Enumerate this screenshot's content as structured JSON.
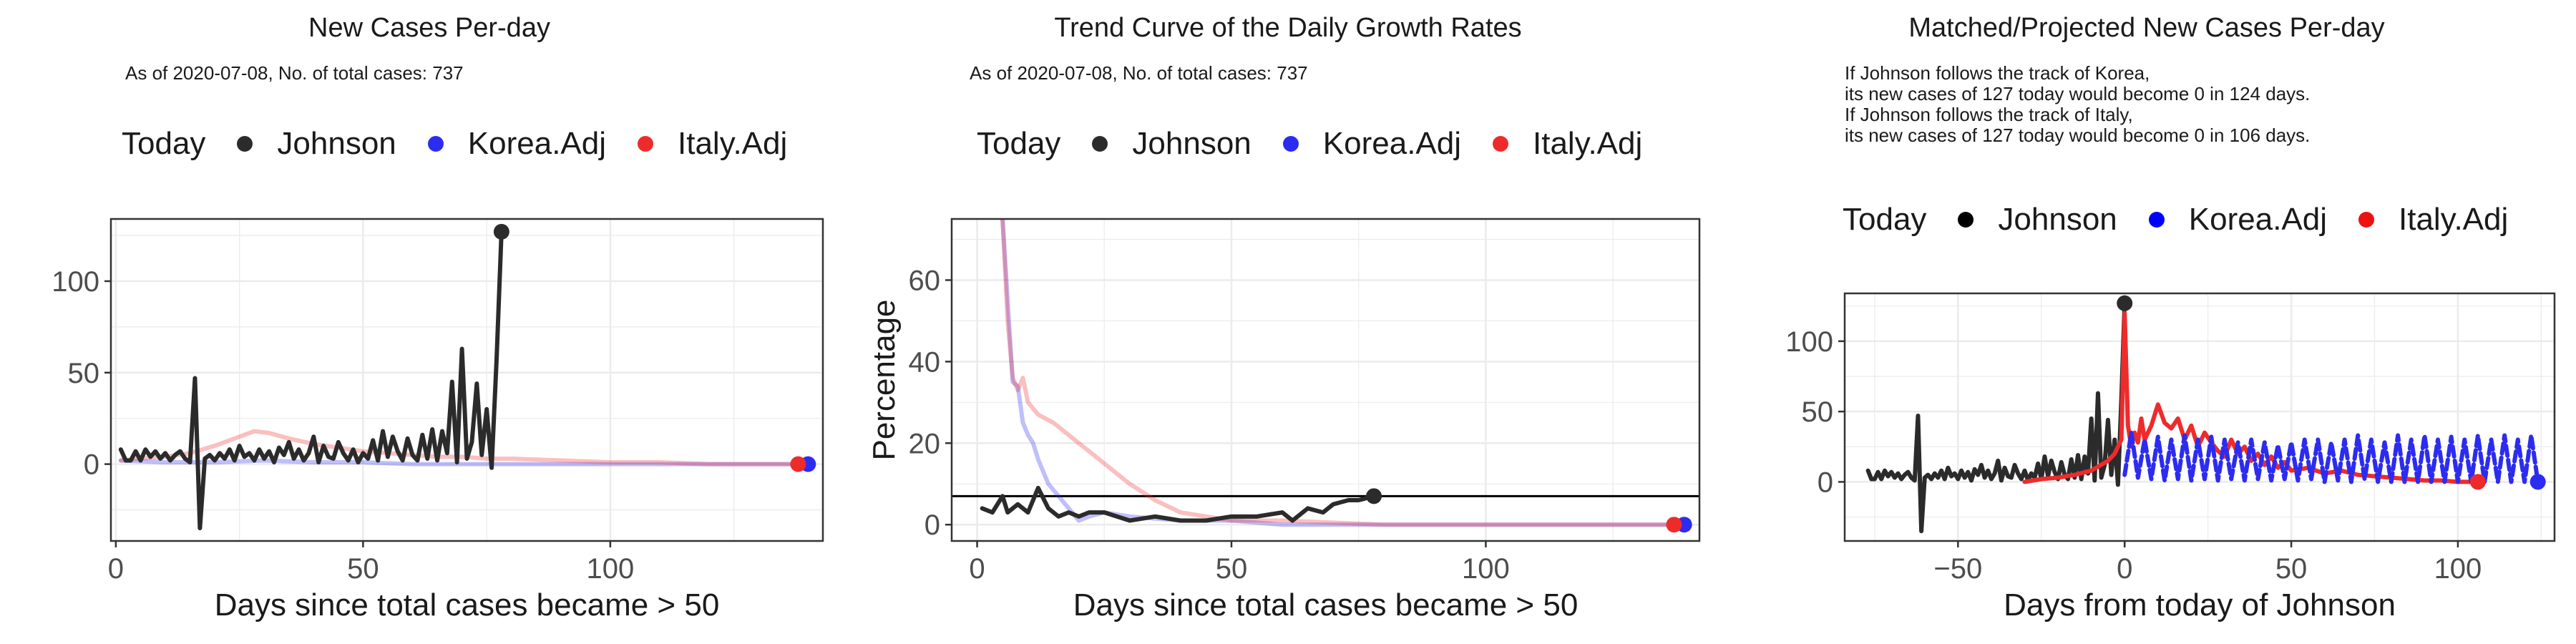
{
  "legend": {
    "title": "Today",
    "items": [
      {
        "label": "Johnson",
        "color": "#2b2b2b"
      },
      {
        "label": "Korea.Adj",
        "color": "#2c2cf0"
      },
      {
        "label": "Italy.Adj",
        "color": "#ee2b2b"
      }
    ]
  },
  "panels": [
    {
      "title": "New Cases Per-day",
      "notes": [
        "As of 2020-07-08, No. of total cases: 737"
      ]
    },
    {
      "title": "Trend Curve of the Daily Growth Rates",
      "notes": [
        "As of 2020-07-08, No. of total cases: 737"
      ]
    },
    {
      "title": "Matched/Projected New Cases Per-day",
      "notes": [
        "If Johnson follows the track of Korea,",
        "its new cases of 127 today would become 0 in 124 days.",
        "If Johnson follows the track of Italy,",
        "its new cases of 127 today would become 0 in 106 days."
      ]
    }
  ],
  "chart_data": [
    {
      "type": "line",
      "title": "New Cases Per-day",
      "subtitle": "As of 2020-07-08, No. of total cases: 737",
      "xlabel": "Days since total cases became > 50",
      "ylabel": "",
      "xlim": [
        -1,
        143
      ],
      "ylim": [
        -42,
        134
      ],
      "xticks": [
        0,
        50,
        100
      ],
      "yticks": [
        0,
        50,
        100
      ],
      "grid": true,
      "legend_position": "top",
      "series": [
        {
          "name": "Johnson",
          "color": "#2b2b2b",
          "opacity": 1,
          "x": [
            1,
            2,
            3,
            4,
            5,
            6,
            7,
            8,
            9,
            10,
            11,
            12,
            13,
            14,
            15,
            16,
            17,
            18,
            19,
            20,
            21,
            22,
            23,
            24,
            25,
            26,
            27,
            28,
            29,
            30,
            31,
            32,
            33,
            34,
            35,
            36,
            37,
            38,
            39,
            40,
            41,
            42,
            43,
            44,
            45,
            46,
            47,
            48,
            49,
            50,
            51,
            52,
            53,
            54,
            55,
            56,
            57,
            58,
            59,
            60,
            61,
            62,
            63,
            64,
            65,
            66,
            67,
            68,
            69,
            70,
            71,
            72,
            73,
            74,
            75,
            76,
            77,
            78
          ],
          "y": [
            8,
            2,
            2,
            7,
            2,
            8,
            4,
            7,
            3,
            6,
            2,
            5,
            7,
            3,
            1,
            47,
            -35,
            3,
            5,
            2,
            6,
            3,
            8,
            2,
            10,
            4,
            6,
            2,
            8,
            3,
            7,
            1,
            9,
            5,
            12,
            3,
            8,
            2,
            6,
            15,
            1,
            10,
            4,
            3,
            12,
            6,
            2,
            8,
            1,
            6,
            3,
            13,
            2,
            18,
            4,
            15,
            7,
            2,
            14,
            5,
            2,
            16,
            3,
            19,
            2,
            18,
            6,
            45,
            1,
            63,
            3,
            12,
            44,
            5,
            30,
            -2,
            57,
            127
          ],
          "today": {
            "x": 78,
            "y": 127
          }
        },
        {
          "name": "Korea.Adj",
          "color": "#2c2cf0",
          "opacity": 0.3,
          "x": [
            1,
            10,
            20,
            30,
            40,
            50,
            60,
            70,
            80,
            90,
            100,
            110,
            120,
            130,
            140
          ],
          "y": [
            2,
            1,
            1,
            2,
            1,
            1,
            0,
            0,
            0,
            0,
            0,
            0,
            0,
            0,
            0
          ],
          "today": {
            "x": 140,
            "y": 0
          }
        },
        {
          "name": "Italy.Adj",
          "color": "#ee2b2b",
          "opacity": 0.3,
          "x": [
            1,
            5,
            10,
            15,
            20,
            25,
            28,
            31,
            35,
            40,
            45,
            50,
            55,
            60,
            65,
            70,
            75,
            80,
            90,
            100,
            110,
            120,
            130,
            138
          ],
          "y": [
            2,
            3,
            4,
            6,
            10,
            15,
            18,
            17,
            14,
            11,
            9,
            7,
            6,
            5,
            4,
            4,
            3,
            3,
            2,
            1,
            1,
            0,
            0,
            0
          ],
          "today": {
            "x": 138,
            "y": 0
          }
        }
      ]
    },
    {
      "type": "line",
      "title": "Trend Curve of the Daily Growth Rates",
      "subtitle": "As of 2020-07-08, No. of total cases: 737",
      "xlabel": "Days since total cases became > 50",
      "ylabel": "Percentage",
      "xlim": [
        -5,
        142
      ],
      "ylim": [
        -4,
        75
      ],
      "xticks": [
        0,
        50,
        100
      ],
      "yticks": [
        0,
        20,
        40,
        60
      ],
      "grid": true,
      "legend_position": "top",
      "hline": 7,
      "series": [
        {
          "name": "Johnson",
          "color": "#2b2b2b",
          "opacity": 1,
          "x": [
            1,
            3,
            5,
            6,
            8,
            10,
            12,
            14,
            16,
            18,
            20,
            22,
            25,
            30,
            35,
            40,
            45,
            50,
            55,
            60,
            62,
            65,
            68,
            70,
            73,
            75,
            78
          ],
          "y": [
            4,
            3,
            7,
            3,
            5,
            3,
            9,
            4,
            2,
            3,
            2,
            3,
            3,
            1,
            2,
            1,
            1,
            2,
            2,
            3,
            1,
            4,
            3,
            5,
            6,
            6,
            7
          ],
          "today": {
            "x": 78,
            "y": 7
          }
        },
        {
          "name": "Korea.Adj",
          "color": "#2c2cf0",
          "opacity": 0.3,
          "x": [
            5,
            6,
            7,
            8,
            9,
            10,
            11,
            12,
            14,
            16,
            18,
            20,
            22,
            25,
            30,
            40,
            50,
            60,
            80,
            100,
            120,
            139
          ],
          "y": [
            75,
            55,
            35,
            34,
            25,
            22,
            20,
            16,
            10,
            7,
            4,
            1,
            2,
            3,
            2,
            1,
            1,
            0,
            0,
            0,
            0,
            0
          ],
          "today": {
            "x": 139,
            "y": 0
          }
        },
        {
          "name": "Italy.Adj",
          "color": "#ee2b2b",
          "opacity": 0.3,
          "x": [
            5,
            6,
            7,
            8,
            9,
            10,
            12,
            15,
            18,
            20,
            22,
            25,
            28,
            30,
            35,
            40,
            45,
            50,
            60,
            80,
            100,
            120,
            137
          ],
          "y": [
            75,
            50,
            36,
            33,
            36,
            30,
            27,
            25,
            22,
            20,
            18,
            15,
            12,
            10,
            6,
            3,
            2,
            1,
            1,
            0,
            0,
            0,
            0
          ],
          "today": {
            "x": 137,
            "y": 0
          }
        }
      ]
    },
    {
      "type": "line",
      "title": "Matched/Projected New Cases Per-day",
      "subtitle": "If Johnson follows the track of Korea, its new cases of 127 today would become 0 in 124 days. If Johnson follows the track of Italy, its new cases of 127 today would become 0 in 106 days.",
      "xlabel": "Days from today of Johnson",
      "ylabel": "",
      "xlim": [
        -84,
        129
      ],
      "ylim": [
        -42,
        134
      ],
      "xticks": [
        -50,
        0,
        50,
        100
      ],
      "yticks": [
        0,
        50,
        100
      ],
      "grid": true,
      "legend_position": "top",
      "series": [
        {
          "name": "Johnson",
          "color": "#2b2b2b",
          "opacity": 1,
          "x": [
            -77,
            -76,
            -75,
            -74,
            -73,
            -72,
            -71,
            -70,
            -69,
            -68,
            -67,
            -66,
            -65,
            -64,
            -63,
            -62,
            -61,
            -60,
            -59,
            -58,
            -57,
            -56,
            -55,
            -54,
            -53,
            -52,
            -51,
            -50,
            -49,
            -48,
            -47,
            -46,
            -45,
            -44,
            -43,
            -42,
            -41,
            -40,
            -39,
            -38,
            -37,
            -36,
            -35,
            -34,
            -33,
            -32,
            -31,
            -30,
            -29,
            -28,
            -27,
            -26,
            -25,
            -24,
            -23,
            -22,
            -21,
            -20,
            -19,
            -18,
            -17,
            -16,
            -15,
            -14,
            -13,
            -12,
            -11,
            -10,
            -9,
            -8,
            -7,
            -6,
            -5,
            -4,
            -3,
            -2,
            -1,
            0
          ],
          "y": [
            8,
            2,
            2,
            7,
            2,
            8,
            4,
            7,
            3,
            6,
            2,
            5,
            7,
            3,
            1,
            47,
            -35,
            3,
            5,
            2,
            6,
            3,
            8,
            2,
            10,
            4,
            6,
            2,
            8,
            3,
            7,
            1,
            9,
            5,
            12,
            3,
            8,
            2,
            6,
            15,
            1,
            10,
            4,
            3,
            12,
            6,
            2,
            8,
            1,
            6,
            3,
            13,
            2,
            18,
            4,
            15,
            7,
            2,
            14,
            5,
            2,
            16,
            3,
            19,
            2,
            18,
            6,
            45,
            1,
            63,
            3,
            12,
            44,
            5,
            30,
            -2,
            57,
            127
          ],
          "today": {
            "x": 0,
            "y": 127
          }
        },
        {
          "name": "Italy.Adj",
          "color": "#ee2b2b",
          "opacity": 1,
          "x": [
            -30,
            -25,
            -20,
            -15,
            -10,
            -5,
            -3,
            -1,
            0,
            1,
            2,
            3,
            4,
            5,
            6,
            8,
            10,
            12,
            14,
            16,
            18,
            20,
            22,
            24,
            26,
            28,
            30,
            32,
            34,
            36,
            38,
            40,
            42,
            44,
            46,
            48,
            50,
            55,
            60,
            65,
            70,
            75,
            80,
            85,
            90,
            95,
            100,
            106
          ],
          "y": [
            0,
            2,
            3,
            5,
            8,
            15,
            20,
            30,
            120,
            40,
            25,
            35,
            28,
            45,
            30,
            40,
            55,
            42,
            38,
            45,
            30,
            40,
            25,
            35,
            28,
            22,
            18,
            30,
            20,
            25,
            15,
            20,
            12,
            18,
            10,
            14,
            8,
            10,
            6,
            8,
            5,
            4,
            3,
            2,
            1,
            1,
            0,
            0
          ],
          "today": {
            "x": 106,
            "y": 0
          }
        },
        {
          "name": "Korea.Adj",
          "color": "#2c2cf0",
          "opacity": 1,
          "spikes_from": 0,
          "spikes_to": 124,
          "x": [
            0,
            2,
            4,
            6,
            8,
            10,
            12,
            14,
            16,
            18,
            20,
            22,
            24,
            26,
            28,
            30,
            32,
            34,
            36,
            38,
            40,
            42,
            44,
            46,
            48,
            50,
            52,
            54,
            56,
            58,
            60,
            62,
            64,
            66,
            68,
            70,
            72,
            74,
            76,
            78,
            80,
            82,
            84,
            86,
            88,
            90,
            92,
            94,
            96,
            98,
            100,
            102,
            104,
            106,
            108,
            110,
            112,
            114,
            116,
            118,
            120,
            122,
            124
          ],
          "y": [
            5,
            35,
            3,
            30,
            2,
            32,
            1,
            30,
            2,
            33,
            1,
            30,
            2,
            32,
            1,
            30,
            2,
            28,
            1,
            30,
            2,
            28,
            1,
            26,
            2,
            28,
            1,
            30,
            2,
            30,
            0,
            28,
            1,
            30,
            0,
            33,
            2,
            30,
            0,
            28,
            0,
            33,
            0,
            30,
            0,
            33,
            0,
            30,
            0,
            32,
            0,
            30,
            0,
            33,
            0,
            30,
            0,
            33,
            0,
            30,
            0,
            33,
            0
          ],
          "today": {
            "x": 124,
            "y": 0
          }
        }
      ]
    }
  ]
}
